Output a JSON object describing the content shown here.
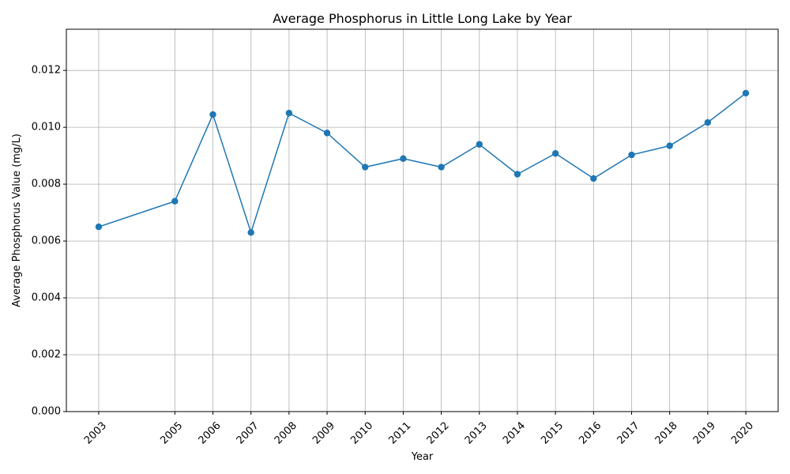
{
  "chart_data": {
    "type": "line",
    "title": "Average Phosphorus in Little Long Lake by Year",
    "xlabel": "Year",
    "ylabel": "Average Phosphorus Value (mg/L)",
    "x": [
      2003,
      2005,
      2006,
      2007,
      2008,
      2009,
      2010,
      2011,
      2012,
      2013,
      2014,
      2015,
      2016,
      2017,
      2018,
      2019,
      2020
    ],
    "x_tick_labels": [
      "2003",
      "2005",
      "2006",
      "2007",
      "2008",
      "2009",
      "2010",
      "2011",
      "2012",
      "2013",
      "2014",
      "2015",
      "2016",
      "2017",
      "2018",
      "2019",
      "2020"
    ],
    "series": [
      {
        "values": [
          0.0065,
          0.0074,
          0.01045,
          0.0063,
          0.0105,
          0.0098,
          0.0086,
          0.0089,
          0.0086,
          0.0094,
          0.00835,
          0.00908,
          0.0082,
          0.00903,
          0.00935,
          0.01017,
          0.0112
        ],
        "color": "#1f77b4",
        "marker": "circle"
      }
    ],
    "xlim": [
      2002.15,
      2020.85
    ],
    "ylim": [
      0,
      0.01345
    ],
    "y_ticks": [
      0,
      0.002,
      0.004,
      0.006,
      0.008,
      0.01,
      0.012
    ],
    "y_tick_labels": [
      "0.000",
      "0.002",
      "0.004",
      "0.006",
      "0.008",
      "0.010",
      "0.012"
    ],
    "grid": true,
    "legend": "none",
    "x_tick_rotation_deg": 45
  }
}
